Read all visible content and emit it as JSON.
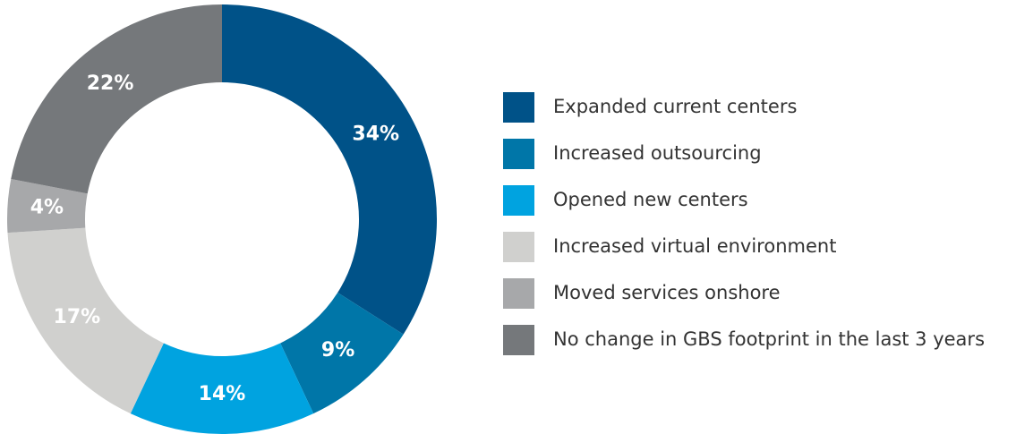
{
  "chart_data": {
    "type": "donut",
    "categories": [
      "Expanded current centers",
      "Increased outsourcing",
      "Opened new centers",
      "Increased virtual environment",
      "Moved services onshore",
      "No change in GBS footprint in the last 3 years"
    ],
    "values": [
      34,
      9,
      14,
      17,
      4,
      22
    ],
    "value_labels": [
      "34%",
      "9%",
      "14%",
      "17%",
      "4%",
      "22%"
    ],
    "colors": [
      "#005288",
      "#0076a8",
      "#00a3e0",
      "#d0d0ce",
      "#a7a8aa",
      "#75787b"
    ],
    "legend": "right"
  }
}
